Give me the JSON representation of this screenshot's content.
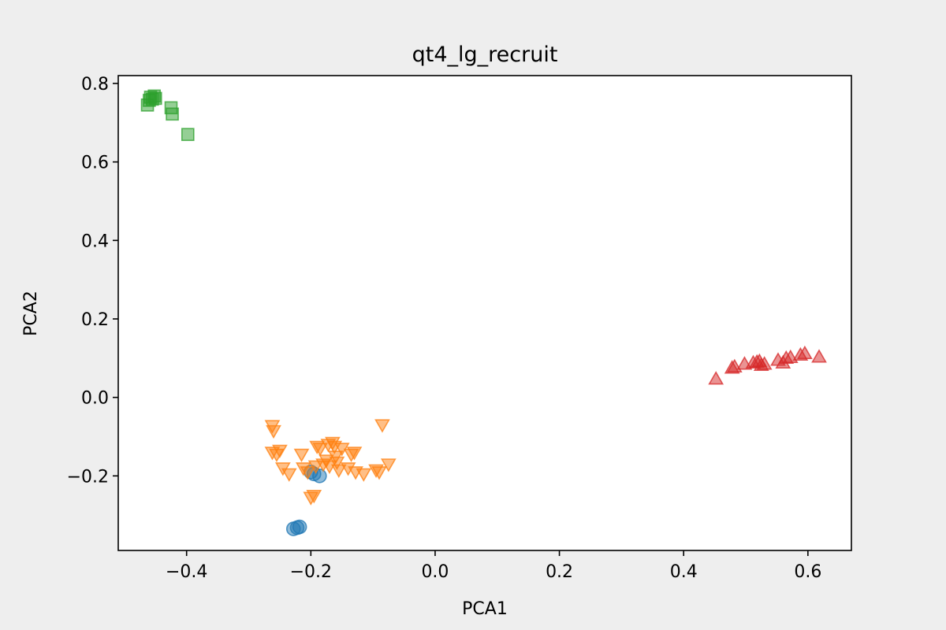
{
  "chart_data": {
    "type": "scatter",
    "title": "qt4_lg_recruit",
    "xlabel": "PCA1",
    "ylabel": "PCA2",
    "xlim": [
      -0.51,
      0.67
    ],
    "ylim": [
      -0.39,
      0.82
    ],
    "xticks": [
      -0.4,
      -0.2,
      0.0,
      0.2,
      0.4,
      0.6
    ],
    "yticks": [
      -0.2,
      0.0,
      0.2,
      0.4,
      0.6,
      0.8
    ],
    "xtick_labels": [
      "−0.4",
      "−0.2",
      "0.0",
      "0.2",
      "0.4",
      "0.6"
    ],
    "ytick_labels": [
      "−0.2",
      "0.0",
      "0.2",
      "0.4",
      "0.6",
      "0.8"
    ],
    "grid": false,
    "series": [
      {
        "marker": "circle",
        "color": "#1f77b4",
        "points": [
          [
            -0.228,
            -0.335
          ],
          [
            -0.222,
            -0.332
          ],
          [
            -0.218,
            -0.33
          ],
          [
            -0.2,
            -0.19
          ],
          [
            -0.195,
            -0.195
          ],
          [
            -0.186,
            -0.2
          ]
        ]
      },
      {
        "marker": "triangle-down",
        "color": "#ff7f0e",
        "points": [
          [
            -0.262,
            -0.072
          ],
          [
            -0.26,
            -0.085
          ],
          [
            -0.262,
            -0.14
          ],
          [
            -0.255,
            -0.145
          ],
          [
            -0.25,
            -0.135
          ],
          [
            -0.245,
            -0.18
          ],
          [
            -0.235,
            -0.195
          ],
          [
            -0.215,
            -0.145
          ],
          [
            -0.212,
            -0.18
          ],
          [
            -0.205,
            -0.19
          ],
          [
            -0.2,
            -0.255
          ],
          [
            -0.195,
            -0.25
          ],
          [
            -0.19,
            -0.125
          ],
          [
            -0.185,
            -0.13
          ],
          [
            -0.18,
            -0.17
          ],
          [
            -0.175,
            -0.16
          ],
          [
            -0.172,
            -0.12
          ],
          [
            -0.165,
            -0.115
          ],
          [
            -0.162,
            -0.125
          ],
          [
            -0.16,
            -0.15
          ],
          [
            -0.158,
            -0.165
          ],
          [
            -0.155,
            -0.185
          ],
          [
            -0.15,
            -0.13
          ],
          [
            -0.14,
            -0.18
          ],
          [
            -0.135,
            -0.145
          ],
          [
            -0.13,
            -0.14
          ],
          [
            -0.128,
            -0.19
          ],
          [
            -0.115,
            -0.195
          ],
          [
            -0.095,
            -0.185
          ],
          [
            -0.09,
            -0.19
          ],
          [
            -0.085,
            -0.07
          ],
          [
            -0.075,
            -0.17
          ],
          [
            -0.192,
            -0.175
          ],
          [
            -0.17,
            -0.175
          ]
        ]
      },
      {
        "marker": "square",
        "color": "#2ca02c",
        "points": [
          [
            -0.463,
            0.745
          ],
          [
            -0.46,
            0.757
          ],
          [
            -0.458,
            0.765
          ],
          [
            -0.455,
            0.76
          ],
          [
            -0.452,
            0.768
          ],
          [
            -0.45,
            0.762
          ],
          [
            -0.425,
            0.738
          ],
          [
            -0.423,
            0.722
          ],
          [
            -0.398,
            0.67
          ]
        ]
      },
      {
        "marker": "triangle-up",
        "color": "#d62728",
        "points": [
          [
            0.452,
            0.047
          ],
          [
            0.478,
            0.075
          ],
          [
            0.482,
            0.078
          ],
          [
            0.498,
            0.085
          ],
          [
            0.512,
            0.088
          ],
          [
            0.518,
            0.09
          ],
          [
            0.522,
            0.092
          ],
          [
            0.525,
            0.082
          ],
          [
            0.53,
            0.085
          ],
          [
            0.552,
            0.095
          ],
          [
            0.56,
            0.088
          ],
          [
            0.565,
            0.1
          ],
          [
            0.572,
            0.102
          ],
          [
            0.588,
            0.108
          ],
          [
            0.595,
            0.112
          ],
          [
            0.618,
            0.103
          ]
        ]
      }
    ]
  }
}
